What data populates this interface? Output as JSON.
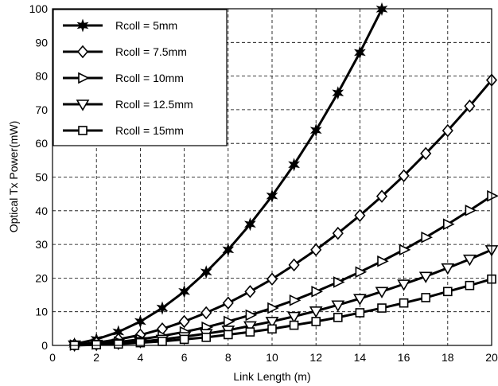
{
  "chart_data": {
    "type": "line",
    "xlabel": "Link Length (m)",
    "ylabel": "Optical Tx Power(mW)",
    "xlim": [
      0,
      20
    ],
    "ylim": [
      0,
      100
    ],
    "xticks": [
      0,
      2,
      4,
      6,
      8,
      10,
      12,
      14,
      16,
      18,
      20
    ],
    "yticks": [
      0,
      10,
      20,
      30,
      40,
      50,
      60,
      70,
      80,
      90,
      100
    ],
    "grid": true,
    "legend_position": "top-left",
    "x": [
      1,
      2,
      3,
      4,
      5,
      6,
      7,
      8,
      9,
      10,
      11,
      12,
      13,
      14,
      15,
      16,
      17,
      18,
      19,
      20
    ],
    "series": [
      {
        "name": "Rcoll = 5mm",
        "marker": "star",
        "values": [
          0.4,
          1.8,
          4.0,
          7.1,
          11.1,
          16.0,
          21.8,
          28.4,
          36.0,
          44.4,
          53.7,
          63.9,
          75.0,
          87.0,
          99.9,
          null,
          null,
          null,
          null,
          null
        ]
      },
      {
        "name": "Rcoll = 7.5mm",
        "marker": "diamond",
        "values": [
          0.2,
          0.8,
          1.8,
          3.1,
          4.9,
          7.1,
          9.7,
          12.6,
          16.0,
          19.7,
          23.9,
          28.4,
          33.3,
          38.6,
          44.3,
          50.4,
          57.0,
          63.8,
          71.1,
          78.8
        ]
      },
      {
        "name": "Rcoll = 10mm",
        "marker": "triangle-right",
        "values": [
          0.1,
          0.4,
          1.0,
          1.8,
          2.8,
          4.0,
          5.4,
          7.1,
          9.0,
          11.1,
          13.4,
          16.0,
          18.8,
          21.8,
          25.0,
          28.4,
          32.1,
          36.0,
          40.1,
          44.4
        ]
      },
      {
        "name": "Rcoll = 12.5mm",
        "marker": "triangle-down",
        "values": [
          0.1,
          0.3,
          0.6,
          1.1,
          1.8,
          2.6,
          3.5,
          4.5,
          5.8,
          7.1,
          8.6,
          10.2,
          12.0,
          13.9,
          16.0,
          18.2,
          20.5,
          23.0,
          25.6,
          28.4
        ]
      },
      {
        "name": "Rcoll = 15mm",
        "marker": "square",
        "values": [
          0.0,
          0.2,
          0.4,
          0.8,
          1.2,
          1.8,
          2.4,
          3.2,
          4.0,
          4.9,
          6.0,
          7.1,
          8.3,
          9.7,
          11.1,
          12.6,
          14.2,
          16.0,
          17.8,
          19.7
        ]
      }
    ]
  }
}
